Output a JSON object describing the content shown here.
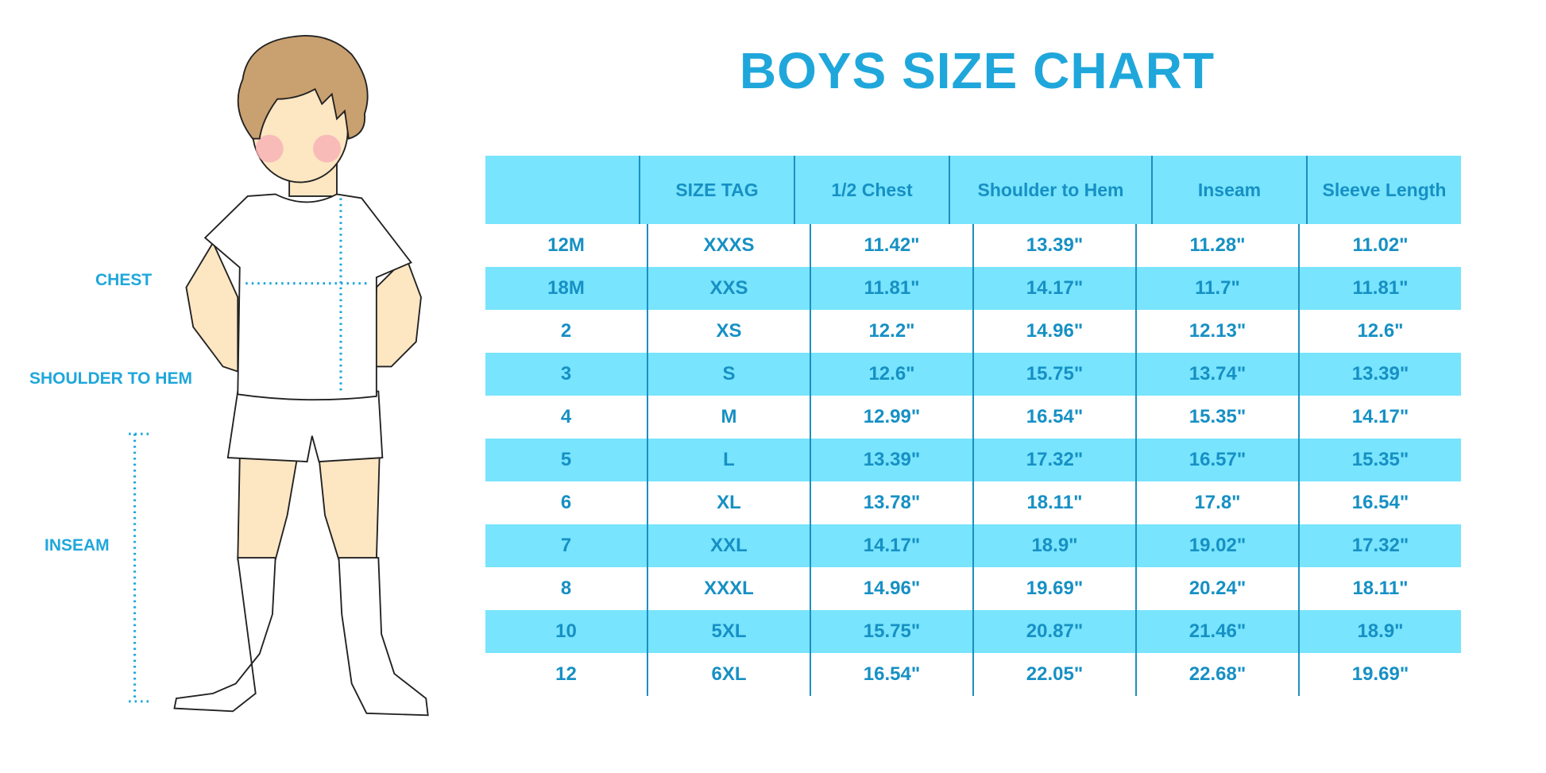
{
  "title": "BOYS SIZE CHART",
  "labels": {
    "chest": "CHEST",
    "shoulder_to_hem": "SHOULDER TO HEM",
    "inseam": "INSEAM"
  },
  "colors": {
    "accent": "#1fa7db",
    "header_bg": "#78e4fd",
    "text": "#1690c4"
  },
  "table": {
    "headers": [
      "",
      "SIZE TAG",
      "1/2 Chest",
      "Shoulder to Hem",
      "Inseam",
      "Sleeve Length"
    ],
    "rows": [
      [
        "12M",
        "XXXS",
        "11.42\"",
        "13.39\"",
        "11.28\"",
        "11.02\""
      ],
      [
        "18M",
        "XXS",
        "11.81\"",
        "14.17\"",
        "11.7\"",
        "11.81\""
      ],
      [
        "2",
        "XS",
        "12.2\"",
        "14.96\"",
        "12.13\"",
        "12.6\""
      ],
      [
        "3",
        "S",
        "12.6\"",
        "15.75\"",
        "13.74\"",
        "13.39\""
      ],
      [
        "4",
        "M",
        "12.99\"",
        "16.54\"",
        "15.35\"",
        "14.17\""
      ],
      [
        "5",
        "L",
        "13.39\"",
        "17.32\"",
        "16.57\"",
        "15.35\""
      ],
      [
        "6",
        "XL",
        "13.78\"",
        "18.11\"",
        "17.8\"",
        "16.54\""
      ],
      [
        "7",
        "XXL",
        "14.17\"",
        "18.9\"",
        "19.02\"",
        "17.32\""
      ],
      [
        "8",
        "XXXL",
        "14.96\"",
        "19.69\"",
        "20.24\"",
        "18.11\""
      ],
      [
        "10",
        "5XL",
        "15.75\"",
        "20.87\"",
        "21.46\"",
        "18.9\""
      ],
      [
        "12",
        "6XL",
        "16.54\"",
        "22.05\"",
        "22.68\"",
        "19.69\""
      ]
    ]
  }
}
